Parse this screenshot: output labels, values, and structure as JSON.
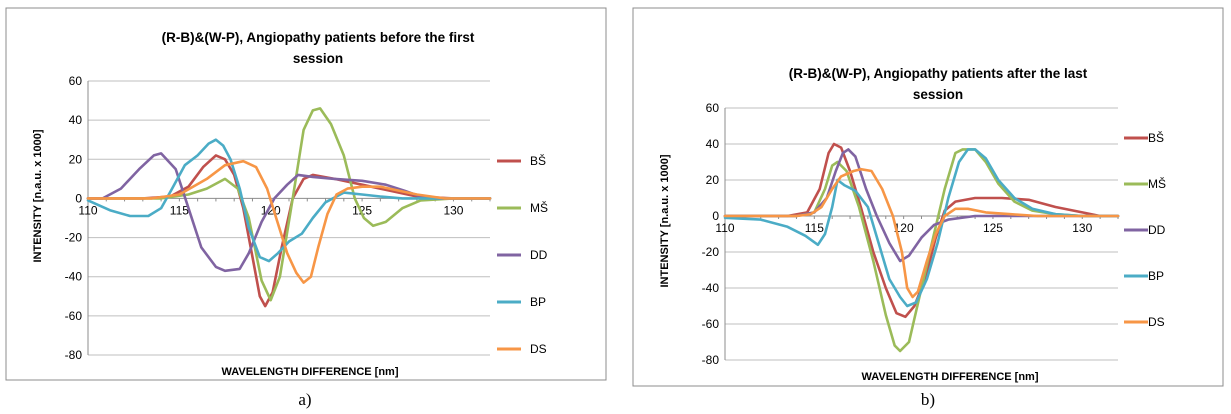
{
  "captions": [
    "a)",
    "b)"
  ],
  "chart_data": [
    {
      "type": "line",
      "title": "(R-B)&(W-P), Angiopathy patients before the first session",
      "xlabel": "WAVELENGTH DIFFERENCE [nm]",
      "ylabel": "INTENSITY [n.a.u. x 1000]",
      "xlim": [
        110,
        132
      ],
      "ylim": [
        -80,
        60
      ],
      "xticks": [
        110,
        115,
        120,
        125,
        130
      ],
      "yticks": [
        60,
        40,
        20,
        0,
        -20,
        -40,
        -60,
        -80
      ],
      "grid": "horizontal",
      "legend": "right",
      "series": [
        {
          "name": "BŠ",
          "color": "#c0504d",
          "points": [
            [
              110,
              0
            ],
            [
              113,
              0
            ],
            [
              114.5,
              1
            ],
            [
              115.5,
              6
            ],
            [
              116.3,
              16
            ],
            [
              117,
              22
            ],
            [
              117.5,
              20
            ],
            [
              118,
              12
            ],
            [
              118.5,
              -5
            ],
            [
              119,
              -30
            ],
            [
              119.4,
              -50
            ],
            [
              119.7,
              -55
            ],
            [
              120.1,
              -48
            ],
            [
              120.6,
              -25
            ],
            [
              121.2,
              0
            ],
            [
              121.8,
              10
            ],
            [
              122.3,
              12
            ],
            [
              123.5,
              10
            ],
            [
              125,
              7
            ],
            [
              126.5,
              4
            ],
            [
              128,
              1
            ],
            [
              130,
              0
            ],
            [
              132,
              0
            ]
          ]
        },
        {
          "name": "MŠ",
          "color": "#9bbb59",
          "points": [
            [
              110,
              0
            ],
            [
              114,
              0
            ],
            [
              115.5,
              2
            ],
            [
              116.5,
              5
            ],
            [
              117.5,
              10
            ],
            [
              118.2,
              5
            ],
            [
              118.8,
              -10
            ],
            [
              119.5,
              -42
            ],
            [
              120,
              -52
            ],
            [
              120.5,
              -40
            ],
            [
              121.2,
              0
            ],
            [
              121.8,
              35
            ],
            [
              122.3,
              45
            ],
            [
              122.7,
              46
            ],
            [
              123.3,
              38
            ],
            [
              124,
              22
            ],
            [
              124.6,
              0
            ],
            [
              125.1,
              -10
            ],
            [
              125.6,
              -14
            ],
            [
              126.3,
              -12
            ],
            [
              127.2,
              -5
            ],
            [
              128.2,
              -1
            ],
            [
              130,
              0
            ],
            [
              132,
              0
            ]
          ]
        },
        {
          "name": "DD",
          "color": "#8064a2",
          "points": [
            [
              110,
              0
            ],
            [
              110.8,
              0
            ],
            [
              111.8,
              5
            ],
            [
              112.8,
              15
            ],
            [
              113.6,
              22
            ],
            [
              114,
              23
            ],
            [
              114.8,
              15
            ],
            [
              115.5,
              -5
            ],
            [
              116.2,
              -25
            ],
            [
              117,
              -35
            ],
            [
              117.5,
              -37
            ],
            [
              118.3,
              -36
            ],
            [
              118.8,
              -28
            ],
            [
              119.5,
              -12
            ],
            [
              120.2,
              0
            ],
            [
              120.9,
              7
            ],
            [
              121.5,
              12
            ],
            [
              122.3,
              11
            ],
            [
              123.5,
              10
            ],
            [
              125,
              9
            ],
            [
              126.3,
              7
            ],
            [
              127.3,
              4
            ],
            [
              128.2,
              1
            ],
            [
              129,
              0
            ],
            [
              132,
              0
            ]
          ]
        },
        {
          "name": "BP",
          "color": "#4bacc6",
          "points": [
            [
              110,
              -1
            ],
            [
              111.2,
              -6
            ],
            [
              112.3,
              -9
            ],
            [
              113.3,
              -9
            ],
            [
              114,
              -5
            ],
            [
              114.6,
              5
            ],
            [
              115.3,
              17
            ],
            [
              116,
              22
            ],
            [
              116.6,
              28
            ],
            [
              117,
              30
            ],
            [
              117.4,
              27
            ],
            [
              117.8,
              20
            ],
            [
              118.3,
              5
            ],
            [
              118.8,
              -15
            ],
            [
              119.4,
              -30
            ],
            [
              119.9,
              -32
            ],
            [
              120.4,
              -28
            ],
            [
              121,
              -22
            ],
            [
              121.7,
              -18
            ],
            [
              122.3,
              -10
            ],
            [
              123,
              -2
            ],
            [
              124,
              3
            ],
            [
              125,
              2
            ],
            [
              126,
              1
            ],
            [
              127.2,
              0
            ],
            [
              132,
              0
            ]
          ]
        },
        {
          "name": "DS",
          "color": "#f79646",
          "points": [
            [
              110,
              0
            ],
            [
              113.5,
              0
            ],
            [
              115,
              2
            ],
            [
              116.5,
              10
            ],
            [
              117.5,
              17
            ],
            [
              118.5,
              19
            ],
            [
              119.2,
              16
            ],
            [
              119.8,
              5
            ],
            [
              120.3,
              -10
            ],
            [
              120.9,
              -28
            ],
            [
              121.4,
              -38
            ],
            [
              121.8,
              -43
            ],
            [
              122.2,
              -40
            ],
            [
              122.6,
              -25
            ],
            [
              123.1,
              -8
            ],
            [
              123.6,
              2
            ],
            [
              124.2,
              5
            ],
            [
              125,
              6
            ],
            [
              126,
              6
            ],
            [
              127,
              4
            ],
            [
              128,
              2
            ],
            [
              129.5,
              0
            ],
            [
              132,
              0
            ]
          ]
        }
      ]
    },
    {
      "type": "line",
      "title": "(R-B)&(W-P), Angiopathy patients after the last session",
      "xlabel": "WAVELENGTH DIFFERENCE [nm]",
      "ylabel": "INTENSITY [n.a.u. x 1000]",
      "xlim": [
        110,
        132
      ],
      "ylim": [
        -80,
        60
      ],
      "xticks": [
        110,
        115,
        120,
        125,
        130
      ],
      "yticks": [
        60,
        40,
        20,
        0,
        -20,
        -40,
        -60,
        -80
      ],
      "grid": "horizontal",
      "legend": "right",
      "series": [
        {
          "name": "BŠ",
          "color": "#c0504d",
          "points": [
            [
              110,
              0
            ],
            [
              113.5,
              0
            ],
            [
              114.6,
              2
            ],
            [
              115.3,
              15
            ],
            [
              115.8,
              35
            ],
            [
              116.1,
              40
            ],
            [
              116.5,
              38
            ],
            [
              117,
              25
            ],
            [
              117.6,
              5
            ],
            [
              118.3,
              -20
            ],
            [
              119,
              -40
            ],
            [
              119.6,
              -54
            ],
            [
              120.1,
              -56
            ],
            [
              120.6,
              -50
            ],
            [
              121.2,
              -35
            ],
            [
              121.8,
              -12
            ],
            [
              122.3,
              3
            ],
            [
              122.9,
              8
            ],
            [
              124,
              10
            ],
            [
              125.5,
              10
            ],
            [
              127,
              9
            ],
            [
              128.5,
              5
            ],
            [
              130,
              2
            ],
            [
              131,
              0
            ],
            [
              132,
              0
            ]
          ]
        },
        {
          "name": "MŠ",
          "color": "#9bbb59",
          "points": [
            [
              110,
              0
            ],
            [
              114,
              0
            ],
            [
              115,
              2
            ],
            [
              115.6,
              15
            ],
            [
              116,
              28
            ],
            [
              116.3,
              30
            ],
            [
              116.8,
              25
            ],
            [
              117.5,
              5
            ],
            [
              118.3,
              -25
            ],
            [
              119,
              -55
            ],
            [
              119.5,
              -72
            ],
            [
              119.8,
              -75
            ],
            [
              120.3,
              -70
            ],
            [
              121,
              -40
            ],
            [
              121.7,
              -10
            ],
            [
              122.3,
              15
            ],
            [
              122.9,
              35
            ],
            [
              123.3,
              37
            ],
            [
              124,
              37
            ],
            [
              124.6,
              30
            ],
            [
              125.3,
              18
            ],
            [
              126.2,
              8
            ],
            [
              127.2,
              3
            ],
            [
              128.5,
              1
            ],
            [
              130,
              0
            ],
            [
              132,
              0
            ]
          ]
        },
        {
          "name": "DD",
          "color": "#8064a2",
          "points": [
            [
              110,
              0
            ],
            [
              114,
              0
            ],
            [
              115,
              2
            ],
            [
              115.7,
              10
            ],
            [
              116.2,
              25
            ],
            [
              116.6,
              35
            ],
            [
              116.9,
              37
            ],
            [
              117.3,
              33
            ],
            [
              117.9,
              15
            ],
            [
              118.5,
              0
            ],
            [
              119.2,
              -15
            ],
            [
              119.8,
              -25
            ],
            [
              120.3,
              -22
            ],
            [
              121,
              -12
            ],
            [
              121.7,
              -5
            ],
            [
              122.5,
              -2
            ],
            [
              124,
              0
            ],
            [
              125,
              0
            ],
            [
              126,
              0
            ],
            [
              128,
              0
            ],
            [
              132,
              0
            ]
          ]
        },
        {
          "name": "BP",
          "color": "#4bacc6",
          "points": [
            [
              110,
              -1
            ],
            [
              112,
              -2
            ],
            [
              113.5,
              -6
            ],
            [
              114.5,
              -11
            ],
            [
              115.2,
              -16
            ],
            [
              115.6,
              -10
            ],
            [
              116,
              5
            ],
            [
              116.3,
              20
            ],
            [
              116.7,
              17
            ],
            [
              117.3,
              14
            ],
            [
              118,
              5
            ],
            [
              118.6,
              -15
            ],
            [
              119.2,
              -35
            ],
            [
              119.8,
              -45
            ],
            [
              120.2,
              -50
            ],
            [
              120.7,
              -48
            ],
            [
              121.3,
              -35
            ],
            [
              121.9,
              -15
            ],
            [
              122.5,
              10
            ],
            [
              123.1,
              30
            ],
            [
              123.6,
              37
            ],
            [
              124,
              37
            ],
            [
              124.6,
              32
            ],
            [
              125.3,
              20
            ],
            [
              126.2,
              10
            ],
            [
              127.2,
              4
            ],
            [
              128.5,
              1
            ],
            [
              130,
              0
            ],
            [
              132,
              0
            ]
          ]
        },
        {
          "name": "DS",
          "color": "#f79646",
          "points": [
            [
              110,
              0
            ],
            [
              114,
              0
            ],
            [
              114.8,
              1
            ],
            [
              115.4,
              5
            ],
            [
              116,
              15
            ],
            [
              116.5,
              22
            ],
            [
              117.2,
              25
            ],
            [
              117.6,
              26
            ],
            [
              118.2,
              25
            ],
            [
              118.8,
              15
            ],
            [
              119.4,
              0
            ],
            [
              119.9,
              -20
            ],
            [
              120.2,
              -40
            ],
            [
              120.5,
              -45
            ],
            [
              120.8,
              -42
            ],
            [
              121.3,
              -25
            ],
            [
              121.8,
              -10
            ],
            [
              122.3,
              0
            ],
            [
              122.9,
              4
            ],
            [
              123.6,
              4
            ],
            [
              124.6,
              2
            ],
            [
              126,
              1
            ],
            [
              127.5,
              0
            ],
            [
              132,
              0
            ]
          ]
        }
      ]
    }
  ]
}
